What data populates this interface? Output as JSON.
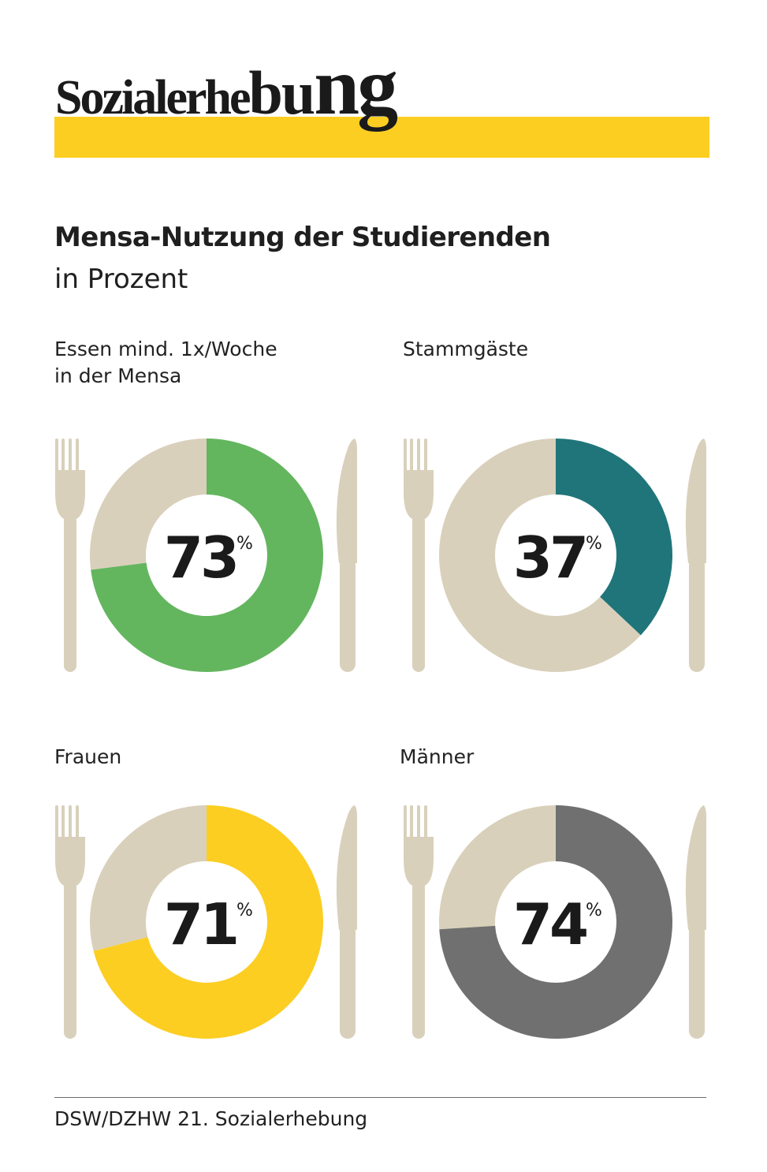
{
  "logo": {
    "part1": "Sozialerhe",
    "part2": "bu",
    "part3": "ng",
    "bar_color": "#FCCE22"
  },
  "header": {
    "title": "Mensa-Nutzung der Studierenden",
    "subtitle": "in Prozent"
  },
  "chart_data": [
    {
      "type": "pie",
      "title": "Essen mind. 1x/Woche\nin der Mensa",
      "value": 73,
      "value_label": "73",
      "unit": "%",
      "categories": [
        "",
        ""
      ],
      "values": [
        73,
        27
      ],
      "colors": [
        "#63B65E",
        "#D9D0BB"
      ]
    },
    {
      "type": "pie",
      "title": "Stammgäste",
      "value": 37,
      "value_label": "37",
      "unit": "%",
      "categories": [
        "",
        ""
      ],
      "values": [
        37,
        63
      ],
      "colors": [
        "#1F757A",
        "#D9D0BB"
      ]
    },
    {
      "type": "pie",
      "title": "Frauen",
      "value": 71,
      "value_label": "71",
      "unit": "%",
      "categories": [
        "",
        ""
      ],
      "values": [
        71,
        29
      ],
      "colors": [
        "#FCCE22",
        "#D9D0BB"
      ]
    },
    {
      "type": "pie",
      "title": "Männer",
      "value": 74,
      "value_label": "74",
      "unit": "%",
      "categories": [
        "",
        ""
      ],
      "values": [
        74,
        26
      ],
      "colors": [
        "#707070",
        "#D9D0BB"
      ]
    }
  ],
  "cutlery_color": "#D9D0BB",
  "source": "DSW/DZHW 21. Sozialerhebung"
}
